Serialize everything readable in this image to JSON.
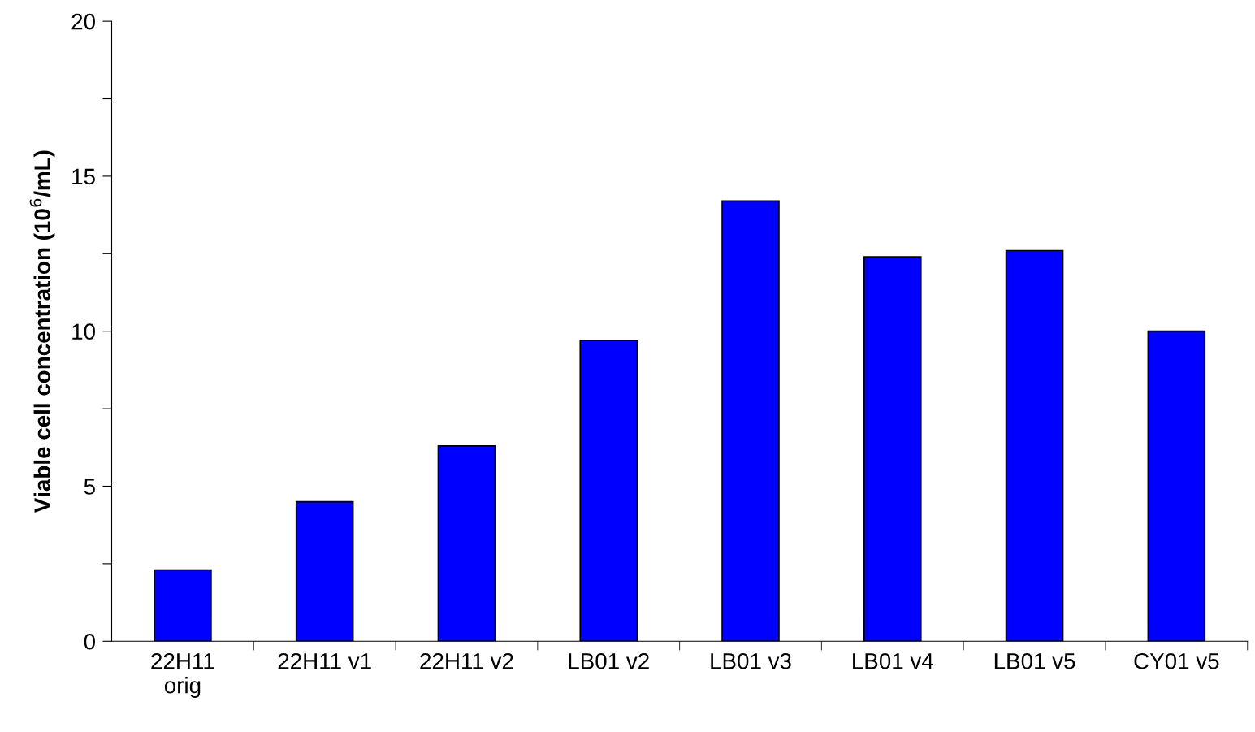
{
  "chart_data": {
    "type": "bar",
    "ylabel": "Viable cell concentration (10$^{6}$/mL)",
    "categories": [
      "22H11\norig",
      "22H11 v1",
      "22H11 v2",
      "LB01 v2",
      "LB01 v3",
      "LB01 v4",
      "LB01 v5",
      "CY01 v5"
    ],
    "values": [
      2.3,
      4.5,
      6.3,
      9.7,
      14.2,
      12.4,
      12.6,
      10.0
    ],
    "color": "#0000ff",
    "ylim": [
      0,
      20
    ],
    "yticks": [
      0,
      {
        "value": 2.5,
        "label": null
      },
      5,
      {
        "value": 7.5,
        "label": null
      },
      10,
      {
        "value": 12.5,
        "label": null
      },
      15,
      {
        "value": 17.5,
        "label": null
      },
      20
    ],
    "grid": false,
    "legend": false
  }
}
